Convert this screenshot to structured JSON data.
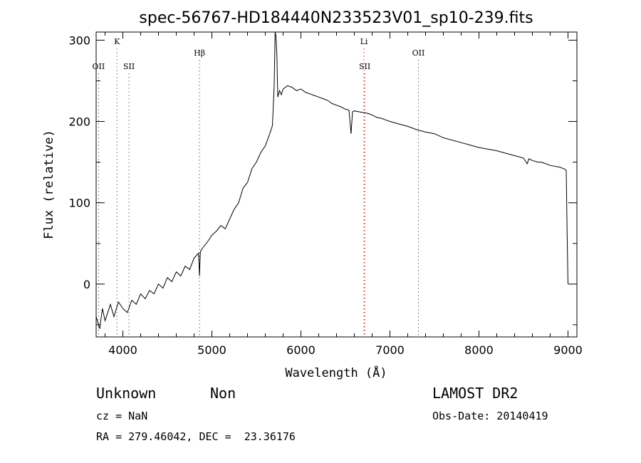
{
  "chart_data": {
    "type": "line",
    "title": "spec-56767-HD184440N233523V01_sp10-239.fits",
    "xlabel": "Wavelength (Å)",
    "ylabel": "Flux (relative)",
    "xlim": [
      3700,
      9100
    ],
    "ylim": [
      -65,
      310
    ],
    "xticks": [
      4000,
      5000,
      6000,
      7000,
      8000,
      9000
    ],
    "yticks": [
      0,
      100,
      200,
      300
    ],
    "grid": false,
    "series": [
      {
        "x": [
          3700,
          3740,
          3770,
          3800,
          3830,
          3860,
          3900,
          3950,
          4000,
          4050,
          4100,
          4150,
          4200,
          4250,
          4300,
          4350,
          4400,
          4450,
          4500,
          4550,
          4600,
          4650,
          4700,
          4750,
          4800,
          4850,
          4861,
          4870,
          4900,
          4950,
          5000,
          5050,
          5100,
          5150,
          5200,
          5250,
          5300,
          5350,
          5400,
          5450,
          5500,
          5550,
          5600,
          5650,
          5680,
          5700,
          5710,
          5720,
          5730,
          5740,
          5760,
          5780,
          5800,
          5850,
          5900,
          5950,
          6000,
          6050,
          6100,
          6150,
          6200,
          6250,
          6300,
          6350,
          6400,
          6450,
          6500,
          6540,
          6563,
          6580,
          6600,
          6650,
          6700,
          6750,
          6800,
          6850,
          6900,
          6950,
          7000,
          7100,
          7200,
          7300,
          7400,
          7500,
          7600,
          7700,
          7800,
          7900,
          8000,
          8100,
          8200,
          8300,
          8400,
          8500,
          8542,
          8560,
          8600,
          8662,
          8700,
          8800,
          8900,
          8950,
          8980,
          8990,
          9000
        ],
        "y": [
          -40,
          -55,
          -30,
          -45,
          -35,
          -25,
          -40,
          -22,
          -30,
          -35,
          -20,
          -25,
          -12,
          -18,
          -8,
          -12,
          0,
          -5,
          8,
          3,
          15,
          10,
          22,
          18,
          32,
          38,
          10,
          40,
          45,
          52,
          60,
          65,
          72,
          68,
          80,
          92,
          100,
          118,
          125,
          142,
          150,
          162,
          170,
          185,
          195,
          245,
          320,
          305,
          280,
          230,
          238,
          233,
          240,
          244,
          242,
          238,
          240,
          236,
          234,
          232,
          230,
          228,
          226,
          222,
          220,
          218,
          215,
          214,
          185,
          212,
          213,
          212,
          211,
          210,
          208,
          205,
          204,
          202,
          200,
          197,
          194,
          190,
          187,
          185,
          180,
          177,
          174,
          171,
          168,
          166,
          164,
          161,
          158,
          155,
          148,
          154,
          152,
          150,
          150,
          146,
          144,
          142,
          140,
          60,
          0
        ]
      }
    ],
    "line_markers": [
      {
        "label": "K",
        "x": 3934,
        "row": "upper",
        "color": "#666666"
      },
      {
        "label": "OII",
        "x": 3727,
        "row": "lower",
        "color": "#666666"
      },
      {
        "label": "SII",
        "x": 4069,
        "row": "lower",
        "color": "#666666"
      },
      {
        "label": "Hβ",
        "x": 4861,
        "row": "mid",
        "color": "#666666"
      },
      {
        "label": "Li",
        "x": 6708,
        "row": "upper",
        "color": "#d32020"
      },
      {
        "label": "SII",
        "x": 6717,
        "row": "lower",
        "color": "#d32020"
      },
      {
        "label": "OII",
        "x": 7320,
        "row": "mid",
        "color": "#666666"
      }
    ]
  },
  "info": {
    "object_class": "Unknown",
    "subclass": "Non",
    "cz": "cz = NaN",
    "coords": "RA = 279.46042, DEC =  23.36176",
    "survey": "LAMOST DR2",
    "obs_date": "Obs-Date: 20140419"
  }
}
